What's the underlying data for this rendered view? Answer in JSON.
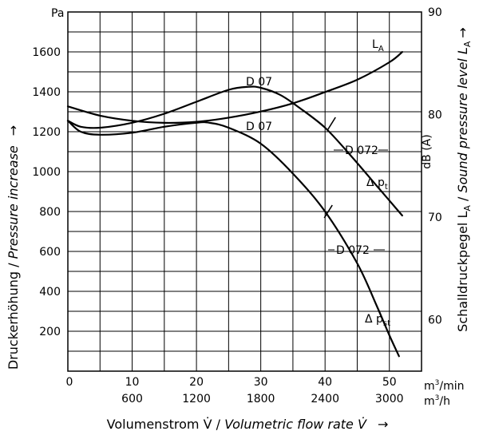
{
  "chart_data": {
    "type": "line",
    "grid": true,
    "x_axis": {
      "label": "Volumenstrom V̇ / Volumetric flow rate V̇  →",
      "unit_primary": "m³/min",
      "unit_secondary": "m³/h",
      "range": [
        0,
        55
      ],
      "ticks_primary": [
        0,
        10,
        20,
        30,
        40,
        50
      ],
      "ticks_primary_labels": [
        "0",
        "10",
        "20",
        "30",
        "40",
        "50"
      ],
      "ticks_secondary": [
        10,
        20,
        30,
        40,
        50
      ],
      "ticks_secondary_labels": [
        "600",
        "1200",
        "1800",
        "2400",
        "3000"
      ]
    },
    "y_axis_left": {
      "label": "Druckerhöhung / Pressure increase  →",
      "unit": "Pa",
      "range": [
        0,
        1800
      ],
      "ticks": [
        200,
        400,
        600,
        800,
        1000,
        1200,
        1400,
        1600
      ],
      "tick_labels": [
        "200",
        "400",
        "600",
        "800",
        "1000",
        "1200",
        "1400",
        "1600"
      ]
    },
    "y_axis_right": {
      "label": "Schalldruckpegel L_A / Sound pressure level L_A →",
      "unit": "dB (A)",
      "range": [
        55,
        90
      ],
      "ticks": [
        60,
        70,
        80,
        90
      ],
      "tick_labels": [
        "60",
        "70",
        "80",
        "90"
      ]
    },
    "series": [
      {
        "name": "L_A",
        "axis": "right",
        "x": [
          0,
          5,
          10,
          15,
          20,
          25,
          30,
          35,
          40,
          45,
          50,
          52
        ],
        "y": [
          80.8,
          79.9,
          79.4,
          79.2,
          79.3,
          79.7,
          80.3,
          81.1,
          82.2,
          83.4,
          85.1,
          86.1
        ]
      },
      {
        "name": "Δp_t",
        "axis": "left",
        "x": [
          0,
          2,
          5,
          10,
          15,
          20,
          25,
          28,
          30,
          33,
          36,
          40,
          44,
          48,
          52
        ],
        "y": [
          1255,
          1225,
          1220,
          1245,
          1290,
          1350,
          1410,
          1425,
          1420,
          1385,
          1320,
          1220,
          1080,
          930,
          780
        ]
      },
      {
        "name": "Δp_st",
        "axis": "left",
        "x": [
          0,
          2,
          5,
          10,
          15,
          20,
          22,
          25,
          30,
          35,
          40,
          45,
          48,
          50,
          51.5
        ],
        "y": [
          1255,
          1200,
          1185,
          1195,
          1225,
          1245,
          1245,
          1220,
          1140,
          990,
          800,
          540,
          330,
          180,
          75
        ]
      }
    ],
    "labels": {
      "pressure_unit": "Pa",
      "spl_unit": "dB (A)",
      "la_name": "L",
      "la_sub": "A",
      "pt_name": "Δ p",
      "pt_sub": "t",
      "pst_name": "Δ p",
      "pst_sub": "st",
      "d07_upper": "D 07",
      "d07_lower": "D 07",
      "d072_upper": "D 072",
      "d072_lower": "D 072",
      "unit_m3min_base": "m",
      "unit_m3min_sup": "3",
      "unit_m3min_tail": "/min",
      "unit_m3h_base": "m",
      "unit_m3h_sup": "3",
      "unit_m3h_tail": "/h",
      "xlabel_plain": "Volumenstrom V̇ / ",
      "xlabel_italic": "Volumetric flow rate V̇",
      "xlabel_arrow": "→",
      "ylabel_plain": "Druckerhöhung / ",
      "ylabel_italic": "Pressure increase",
      "ylabel_arrow": "→",
      "y2label_plain": "Schalldruckpegel L",
      "y2label_sub": "A",
      "y2label_sep": " / ",
      "y2label_italic": "Sound pressure level L",
      "y2label_isub": "A",
      "y2label_arrow": "→"
    }
  }
}
